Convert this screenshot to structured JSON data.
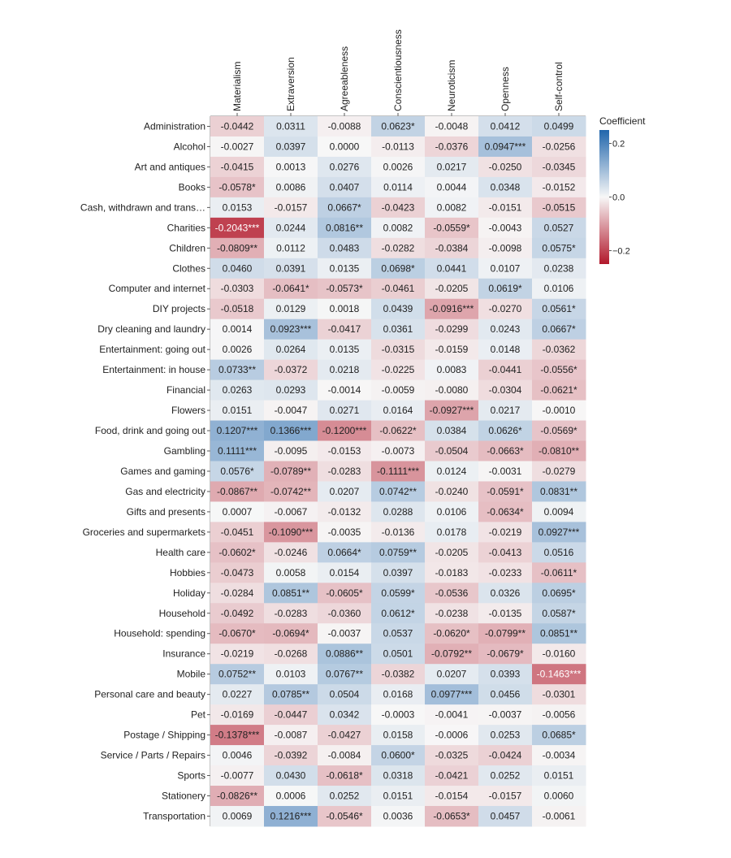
{
  "chart_data": {
    "type": "heatmap",
    "title": "",
    "colorbar": {
      "title": "Coefficient",
      "ticks": [
        0.2,
        0.0,
        -0.2
      ],
      "tick_labels": [
        "0.2",
        "0.0",
        "−0.2"
      ],
      "range": [
        -0.25,
        0.25
      ],
      "low_color": "#b2182b",
      "mid_color": "#f7f7f7",
      "high_color": "#2166ac"
    },
    "columns": [
      "Materialism",
      "Extraversion",
      "Agreeableness",
      "Conscientiousness",
      "Neuroticism",
      "Openness",
      "Self-control"
    ],
    "rows": [
      {
        "label": "Administration",
        "values": [
          -0.0442,
          0.0311,
          -0.0088,
          0.0623,
          -0.0048,
          0.0412,
          0.0499
        ],
        "labels": [
          "-0.0442",
          "0.0311",
          "-0.0088",
          "0.0623*",
          "-0.0048",
          "0.0412",
          "0.0499"
        ]
      },
      {
        "label": "Alcohol",
        "values": [
          -0.0027,
          0.0397,
          0.0,
          -0.0113,
          -0.0376,
          0.0947,
          -0.0256
        ],
        "labels": [
          "-0.0027",
          "0.0397",
          "0.0000",
          "-0.0113",
          "-0.0376",
          "0.0947***",
          "-0.0256"
        ]
      },
      {
        "label": "Art and antiques",
        "values": [
          -0.0415,
          0.0013,
          0.0276,
          0.0026,
          0.0217,
          -0.025,
          -0.0345
        ],
        "labels": [
          "-0.0415",
          "0.0013",
          "0.0276",
          "0.0026",
          "0.0217",
          "-0.0250",
          "-0.0345"
        ]
      },
      {
        "label": "Books",
        "values": [
          -0.0578,
          0.0086,
          0.0407,
          0.0114,
          0.0044,
          0.0348,
          -0.0152
        ],
        "labels": [
          "-0.0578*",
          "0.0086",
          "0.0407",
          "0.0114",
          "0.0044",
          "0.0348",
          "-0.0152"
        ]
      },
      {
        "label": "Cash, withdrawn and trans…",
        "values": [
          0.0153,
          -0.0157,
          0.0667,
          -0.0423,
          0.0082,
          -0.0151,
          -0.0515
        ],
        "labels": [
          "0.0153",
          "-0.0157",
          "0.0667*",
          "-0.0423",
          "0.0082",
          "-0.0151",
          "-0.0515"
        ]
      },
      {
        "label": "Charities",
        "values": [
          -0.2043,
          0.0244,
          0.0816,
          0.0082,
          -0.0559,
          -0.0043,
          0.0527
        ],
        "labels": [
          "-0.2043***",
          "0.0244",
          "0.0816**",
          "0.0082",
          "-0.0559*",
          "-0.0043",
          "0.0527"
        ]
      },
      {
        "label": "Children",
        "values": [
          -0.0809,
          0.0112,
          0.0483,
          -0.0282,
          -0.0384,
          -0.0098,
          0.0575
        ],
        "labels": [
          "-0.0809**",
          "0.0112",
          "0.0483",
          "-0.0282",
          "-0.0384",
          "-0.0098",
          "0.0575*"
        ]
      },
      {
        "label": "Clothes",
        "values": [
          0.046,
          0.0391,
          0.0135,
          0.0698,
          0.0441,
          0.0107,
          0.0238
        ],
        "labels": [
          "0.0460",
          "0.0391",
          "0.0135",
          "0.0698*",
          "0.0441",
          "0.0107",
          "0.0238"
        ]
      },
      {
        "label": "Computer and internet",
        "values": [
          -0.0303,
          -0.0641,
          -0.0573,
          -0.0461,
          -0.0205,
          0.0619,
          0.0106
        ],
        "labels": [
          "-0.0303",
          "-0.0641*",
          "-0.0573*",
          "-0.0461",
          "-0.0205",
          "0.0619*",
          "0.0106"
        ]
      },
      {
        "label": "DIY projects",
        "values": [
          -0.0518,
          0.0129,
          0.0018,
          0.0439,
          -0.0916,
          -0.027,
          0.0561
        ],
        "labels": [
          "-0.0518",
          "0.0129",
          "0.0018",
          "0.0439",
          "-0.0916***",
          "-0.0270",
          "0.0561*"
        ]
      },
      {
        "label": "Dry cleaning and laundry",
        "values": [
          0.0014,
          0.0923,
          -0.0417,
          0.0361,
          -0.0299,
          0.0243,
          0.0667
        ],
        "labels": [
          "0.0014",
          "0.0923***",
          "-0.0417",
          "0.0361",
          "-0.0299",
          "0.0243",
          "0.0667*"
        ]
      },
      {
        "label": "Entertainment: going out",
        "values": [
          0.0026,
          0.0264,
          0.0135,
          -0.0315,
          -0.0159,
          0.0148,
          -0.0362
        ],
        "labels": [
          "0.0026",
          "0.0264",
          "0.0135",
          "-0.0315",
          "-0.0159",
          "0.0148",
          "-0.0362"
        ]
      },
      {
        "label": "Entertainment: in house",
        "values": [
          0.0733,
          -0.0372,
          0.0218,
          -0.0225,
          0.0083,
          -0.0441,
          -0.0556
        ],
        "labels": [
          "0.0733**",
          "-0.0372",
          "0.0218",
          "-0.0225",
          "0.0083",
          "-0.0441",
          "-0.0556*"
        ]
      },
      {
        "label": "Financial",
        "values": [
          0.0263,
          0.0293,
          -0.0014,
          -0.0059,
          -0.008,
          -0.0304,
          -0.0621
        ],
        "labels": [
          "0.0263",
          "0.0293",
          "-0.0014",
          "-0.0059",
          "-0.0080",
          "-0.0304",
          "-0.0621*"
        ]
      },
      {
        "label": "Flowers",
        "values": [
          0.0151,
          -0.0047,
          0.0271,
          0.0164,
          -0.0927,
          0.0217,
          -0.001
        ],
        "labels": [
          "0.0151",
          "-0.0047",
          "0.0271",
          "0.0164",
          "-0.0927***",
          "0.0217",
          "-0.0010"
        ]
      },
      {
        "label": "Food, drink and going out",
        "values": [
          0.1207,
          0.1366,
          -0.12,
          -0.0622,
          0.0384,
          0.0626,
          -0.0569
        ],
        "labels": [
          "0.1207***",
          "0.1366***",
          "-0.1200***",
          "-0.0622*",
          "0.0384",
          "0.0626*",
          "-0.0569*"
        ]
      },
      {
        "label": "Gambling",
        "values": [
          0.1111,
          -0.0095,
          -0.0153,
          -0.0073,
          -0.0504,
          -0.0663,
          -0.081
        ],
        "labels": [
          "0.1111***",
          "-0.0095",
          "-0.0153",
          "-0.0073",
          "-0.0504",
          "-0.0663*",
          "-0.0810**"
        ]
      },
      {
        "label": "Games and gaming",
        "values": [
          0.0576,
          -0.0789,
          -0.0283,
          -0.1111,
          0.0124,
          -0.0031,
          -0.0279
        ],
        "labels": [
          "0.0576*",
          "-0.0789**",
          "-0.0283",
          "-0.1111***",
          "0.0124",
          "-0.0031",
          "-0.0279"
        ]
      },
      {
        "label": "Gas and electricity",
        "values": [
          -0.0867,
          -0.0742,
          0.0207,
          0.0742,
          -0.024,
          -0.0591,
          0.0831
        ],
        "labels": [
          "-0.0867**",
          "-0.0742**",
          "0.0207",
          "0.0742**",
          "-0.0240",
          "-0.0591*",
          "0.0831**"
        ]
      },
      {
        "label": "Gifts and presents",
        "values": [
          0.0007,
          -0.0067,
          -0.0132,
          0.0288,
          0.0106,
          -0.0634,
          0.0094
        ],
        "labels": [
          "0.0007",
          "-0.0067",
          "-0.0132",
          "0.0288",
          "0.0106",
          "-0.0634*",
          "0.0094"
        ]
      },
      {
        "label": "Groceries and supermarkets",
        "values": [
          -0.0451,
          -0.109,
          -0.0035,
          -0.0136,
          0.0178,
          -0.0219,
          0.0927
        ],
        "labels": [
          "-0.0451",
          "-0.1090***",
          "-0.0035",
          "-0.0136",
          "0.0178",
          "-0.0219",
          "0.0927***"
        ]
      },
      {
        "label": "Health care",
        "values": [
          -0.0602,
          -0.0246,
          0.0664,
          0.0759,
          -0.0205,
          -0.0413,
          0.0516
        ],
        "labels": [
          "-0.0602*",
          "-0.0246",
          "0.0664*",
          "0.0759**",
          "-0.0205",
          "-0.0413",
          "0.0516"
        ]
      },
      {
        "label": "Hobbies",
        "values": [
          -0.0473,
          0.0058,
          0.0154,
          0.0397,
          -0.0183,
          -0.0233,
          -0.0611
        ],
        "labels": [
          "-0.0473",
          "0.0058",
          "0.0154",
          "0.0397",
          "-0.0183",
          "-0.0233",
          "-0.0611*"
        ]
      },
      {
        "label": "Holiday",
        "values": [
          -0.0284,
          0.0851,
          -0.0605,
          0.0599,
          -0.0536,
          0.0326,
          0.0695
        ],
        "labels": [
          "-0.0284",
          "0.0851**",
          "-0.0605*",
          "0.0599*",
          "-0.0536",
          "0.0326",
          "0.0695*"
        ]
      },
      {
        "label": "Household",
        "values": [
          -0.0492,
          -0.0283,
          -0.036,
          0.0612,
          -0.0238,
          -0.0135,
          0.0587
        ],
        "labels": [
          "-0.0492",
          "-0.0283",
          "-0.0360",
          "0.0612*",
          "-0.0238",
          "-0.0135",
          "0.0587*"
        ]
      },
      {
        "label": "Household: spending",
        "values": [
          -0.067,
          -0.0694,
          -0.0037,
          0.0537,
          -0.062,
          -0.0799,
          0.0851
        ],
        "labels": [
          "-0.0670*",
          "-0.0694*",
          "-0.0037",
          "0.0537",
          "-0.0620*",
          "-0.0799**",
          "0.0851**"
        ]
      },
      {
        "label": "Insurance",
        "values": [
          -0.0219,
          -0.0268,
          0.0886,
          0.0501,
          -0.0792,
          -0.0679,
          -0.016
        ],
        "labels": [
          "-0.0219",
          "-0.0268",
          "0.0886**",
          "0.0501",
          "-0.0792**",
          "-0.0679*",
          "-0.0160"
        ]
      },
      {
        "label": "Mobile",
        "values": [
          0.0752,
          0.0103,
          0.0767,
          -0.0382,
          0.0207,
          0.0393,
          -0.1463
        ],
        "labels": [
          "0.0752**",
          "0.0103",
          "0.0767**",
          "-0.0382",
          "0.0207",
          "0.0393",
          "-0.1463***"
        ]
      },
      {
        "label": "Personal care and beauty",
        "values": [
          0.0227,
          0.0785,
          0.0504,
          0.0168,
          0.0977,
          0.0456,
          -0.0301
        ],
        "labels": [
          "0.0227",
          "0.0785**",
          "0.0504",
          "0.0168",
          "0.0977***",
          "0.0456",
          "-0.0301"
        ]
      },
      {
        "label": "Pet",
        "values": [
          -0.0169,
          -0.0447,
          0.0342,
          -0.0003,
          -0.0041,
          -0.0037,
          -0.0056
        ],
        "labels": [
          "-0.0169",
          "-0.0447",
          "0.0342",
          "-0.0003",
          "-0.0041",
          "-0.0037",
          "-0.0056"
        ]
      },
      {
        "label": "Postage / Shipping",
        "values": [
          -0.1378,
          -0.0087,
          -0.0427,
          0.0158,
          -0.0006,
          0.0253,
          0.0685
        ],
        "labels": [
          "-0.1378***",
          "-0.0087",
          "-0.0427",
          "0.0158",
          "-0.0006",
          "0.0253",
          "0.0685*"
        ]
      },
      {
        "label": "Service / Parts / Repairs",
        "values": [
          0.0046,
          -0.0392,
          -0.0084,
          0.06,
          -0.0325,
          -0.0424,
          -0.0034
        ],
        "labels": [
          "0.0046",
          "-0.0392",
          "-0.0084",
          "0.0600*",
          "-0.0325",
          "-0.0424",
          "-0.0034"
        ]
      },
      {
        "label": "Sports",
        "values": [
          -0.0077,
          0.043,
          -0.0618,
          0.0318,
          -0.0421,
          0.0252,
          0.0151
        ],
        "labels": [
          "-0.0077",
          "0.0430",
          "-0.0618*",
          "0.0318",
          "-0.0421",
          "0.0252",
          "0.0151"
        ]
      },
      {
        "label": "Stationery",
        "values": [
          -0.0826,
          0.0006,
          0.0252,
          0.0151,
          -0.0154,
          -0.0157,
          0.006
        ],
        "labels": [
          "-0.0826**",
          "0.0006",
          "0.0252",
          "0.0151",
          "-0.0154",
          "-0.0157",
          "0.0060"
        ]
      },
      {
        "label": "Transportation",
        "values": [
          0.0069,
          0.1216,
          -0.0546,
          0.0036,
          -0.0653,
          0.0457,
          -0.0061
        ],
        "labels": [
          "0.0069",
          "0.1216***",
          "-0.0546*",
          "0.0036",
          "-0.0653*",
          "0.0457",
          "-0.0061"
        ]
      }
    ]
  }
}
